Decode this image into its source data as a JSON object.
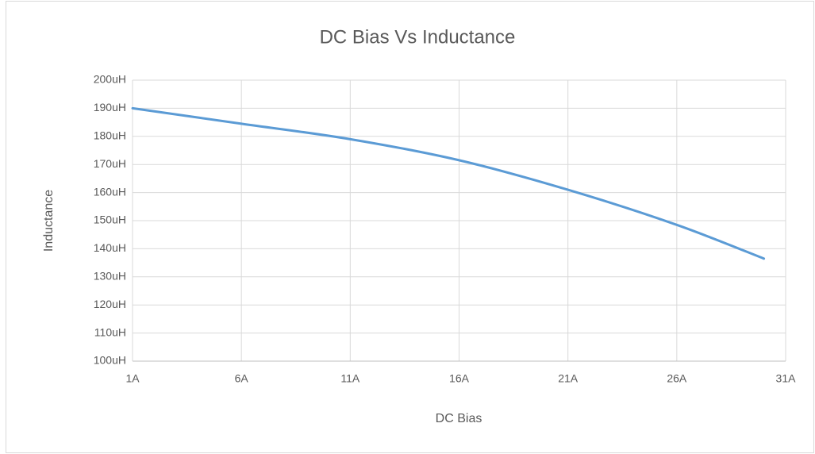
{
  "chart_data": {
    "type": "line",
    "title": "DC Bias Vs Inductance",
    "x_label": "DC Bias",
    "y_label": "Inductance",
    "x": [
      1,
      6,
      11,
      16,
      21,
      26,
      30
    ],
    "series": [
      {
        "name": "Inductance",
        "color": "#5b9bd5",
        "values": [
          190,
          184.5,
          179,
          171.5,
          161,
          148.5,
          136.5
        ]
      }
    ],
    "xlim": [
      1,
      31
    ],
    "xticks": [
      {
        "value": 1,
        "label": "1A"
      },
      {
        "value": 6,
        "label": "6A"
      },
      {
        "value": 11,
        "label": "11A"
      },
      {
        "value": 16,
        "label": "16A"
      },
      {
        "value": 21,
        "label": "21A"
      },
      {
        "value": 26,
        "label": "26A"
      },
      {
        "value": 31,
        "label": "31A"
      }
    ],
    "ylim": [
      100,
      200
    ],
    "yticks": [
      {
        "value": 100,
        "label": "100uH"
      },
      {
        "value": 110,
        "label": "110uH"
      },
      {
        "value": 120,
        "label": "120uH"
      },
      {
        "value": 130,
        "label": "130uH"
      },
      {
        "value": 140,
        "label": "140uH"
      },
      {
        "value": 150,
        "label": "150uH"
      },
      {
        "value": 160,
        "label": "160uH"
      },
      {
        "value": 170,
        "label": "170uH"
      },
      {
        "value": 180,
        "label": "180uH"
      },
      {
        "value": 190,
        "label": "190uH"
      },
      {
        "value": 200,
        "label": "200uH"
      }
    ],
    "grid": true
  }
}
